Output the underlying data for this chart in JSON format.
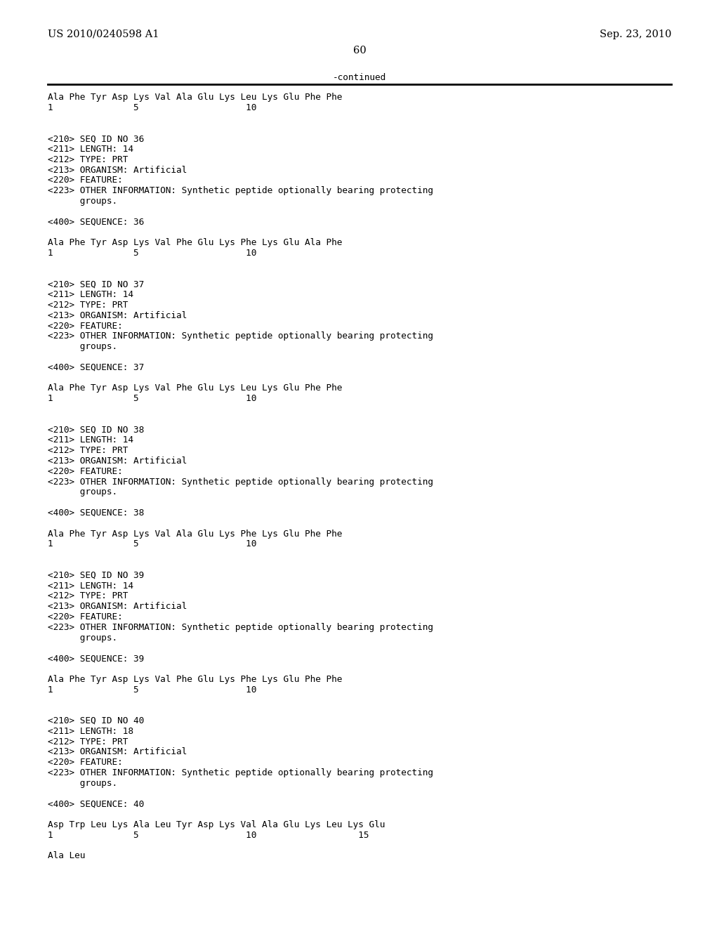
{
  "header_left": "US 2010/0240598 A1",
  "header_right": "Sep. 23, 2010",
  "page_number": "60",
  "continued_text": "-continued",
  "background_color": "#ffffff",
  "text_color": "#000000",
  "font_size_header": 10.5,
  "font_size_body": 9.2,
  "lines": [
    "Ala Phe Tyr Asp Lys Val Ala Glu Lys Leu Lys Glu Phe Phe",
    "1               5                    10",
    "",
    "",
    "<210> SEQ ID NO 36",
    "<211> LENGTH: 14",
    "<212> TYPE: PRT",
    "<213> ORGANISM: Artificial",
    "<220> FEATURE:",
    "<223> OTHER INFORMATION: Synthetic peptide optionally bearing protecting",
    "      groups.",
    "",
    "<400> SEQUENCE: 36",
    "",
    "Ala Phe Tyr Asp Lys Val Phe Glu Lys Phe Lys Glu Ala Phe",
    "1               5                    10",
    "",
    "",
    "<210> SEQ ID NO 37",
    "<211> LENGTH: 14",
    "<212> TYPE: PRT",
    "<213> ORGANISM: Artificial",
    "<220> FEATURE:",
    "<223> OTHER INFORMATION: Synthetic peptide optionally bearing protecting",
    "      groups.",
    "",
    "<400> SEQUENCE: 37",
    "",
    "Ala Phe Tyr Asp Lys Val Phe Glu Lys Leu Lys Glu Phe Phe",
    "1               5                    10",
    "",
    "",
    "<210> SEQ ID NO 38",
    "<211> LENGTH: 14",
    "<212> TYPE: PRT",
    "<213> ORGANISM: Artificial",
    "<220> FEATURE:",
    "<223> OTHER INFORMATION: Synthetic peptide optionally bearing protecting",
    "      groups.",
    "",
    "<400> SEQUENCE: 38",
    "",
    "Ala Phe Tyr Asp Lys Val Ala Glu Lys Phe Lys Glu Phe Phe",
    "1               5                    10",
    "",
    "",
    "<210> SEQ ID NO 39",
    "<211> LENGTH: 14",
    "<212> TYPE: PRT",
    "<213> ORGANISM: Artificial",
    "<220> FEATURE:",
    "<223> OTHER INFORMATION: Synthetic peptide optionally bearing protecting",
    "      groups.",
    "",
    "<400> SEQUENCE: 39",
    "",
    "Ala Phe Tyr Asp Lys Val Phe Glu Lys Phe Lys Glu Phe Phe",
    "1               5                    10",
    "",
    "",
    "<210> SEQ ID NO 40",
    "<211> LENGTH: 18",
    "<212> TYPE: PRT",
    "<213> ORGANISM: Artificial",
    "<220> FEATURE:",
    "<223> OTHER INFORMATION: Synthetic peptide optionally bearing protecting",
    "      groups.",
    "",
    "<400> SEQUENCE: 40",
    "",
    "Asp Trp Leu Lys Ala Leu Tyr Asp Lys Val Ala Glu Lys Leu Lys Glu",
    "1               5                    10                   15",
    "",
    "Ala Leu"
  ]
}
